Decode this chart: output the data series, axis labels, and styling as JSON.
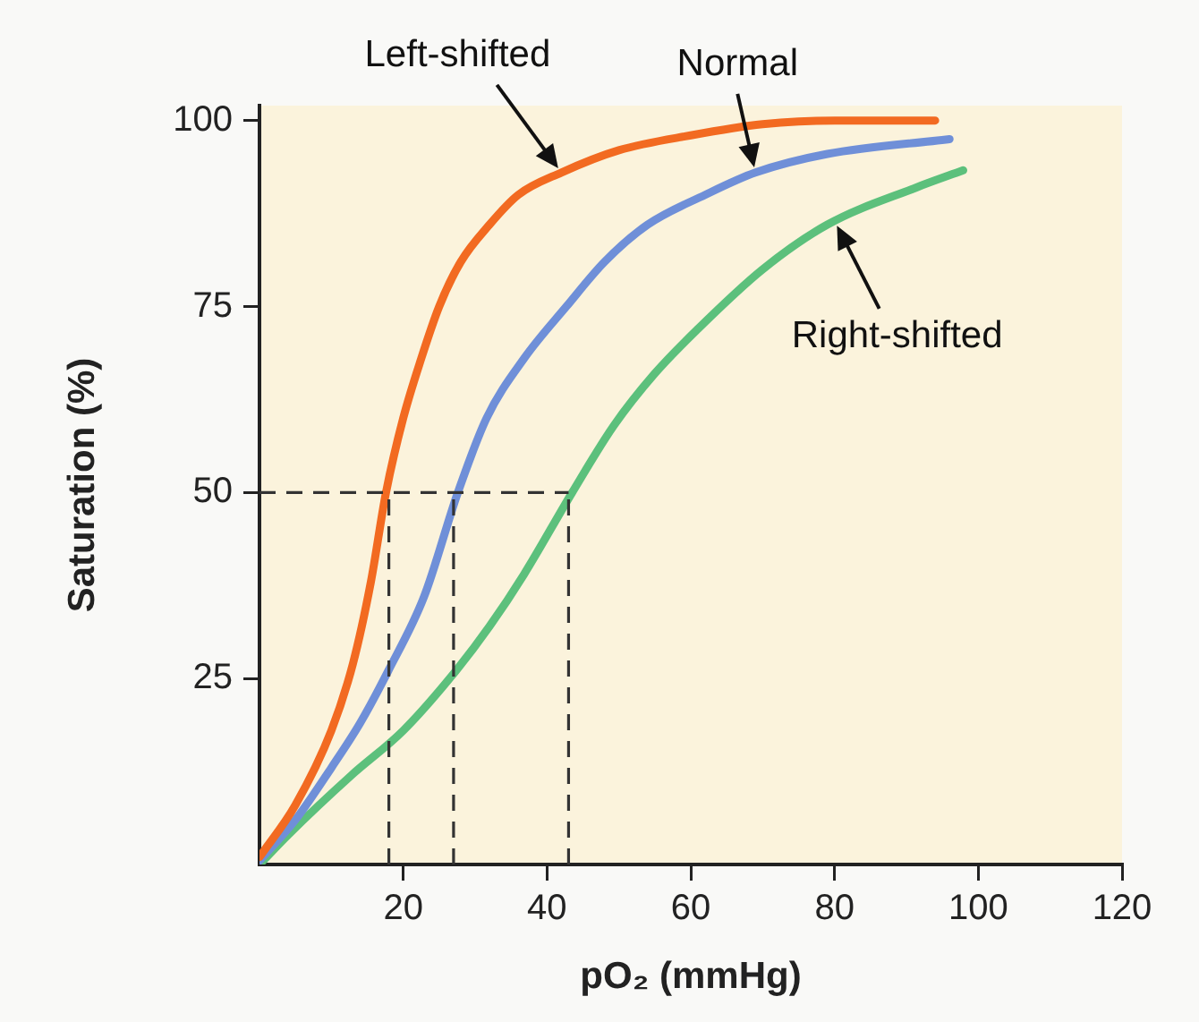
{
  "chart_data": {
    "type": "line",
    "xlabel": "pO₂ (mmHg)",
    "ylabel": "Saturation (%)",
    "xlim": [
      0,
      120
    ],
    "xticks": [
      20,
      40,
      60,
      80,
      100,
      120
    ],
    "ylim": [
      0,
      102
    ],
    "yticks": [
      25,
      50,
      75,
      100
    ],
    "grid": false,
    "legend": false,
    "marker": "none",
    "line_style": "solid",
    "series": [
      {
        "color": "#f26a21",
        "x": [
          0,
          5,
          10,
          13,
          15.5,
          17.6,
          20,
          22.5,
          25,
          28,
          32,
          36,
          42,
          50,
          60,
          70,
          80,
          94
        ],
        "values": [
          1,
          8,
          18,
          27,
          38,
          50,
          60,
          68,
          75,
          81,
          86,
          90,
          93,
          96,
          98,
          99.5,
          100,
          100
        ]
      },
      {
        "color": "#6f8fd8",
        "x": [
          0,
          5,
          10,
          14,
          17.9,
          22.9,
          27.6,
          31.6,
          36.8,
          42.7,
          48,
          54,
          62,
          69,
          79,
          96
        ],
        "values": [
          0.5,
          6,
          13,
          19,
          26,
          36,
          50,
          60,
          68,
          75,
          81,
          86,
          90,
          93,
          95.5,
          97.5
        ]
      },
      {
        "color": "#5cc07c",
        "x": [
          0,
          4,
          12.8,
          20,
          27.3,
          32,
          36.8,
          43.5,
          49.3,
          55,
          61,
          70,
          79,
          91.4,
          97.9
        ],
        "values": [
          0,
          4,
          12,
          18,
          26,
          32,
          39,
          50,
          59,
          66,
          72,
          80,
          86,
          91,
          93.3
        ]
      }
    ],
    "ref_lines": [
      {
        "axis": "y",
        "value": 50,
        "color": "#333333",
        "line_style": "dashed"
      },
      {
        "axis": "x",
        "value": 18,
        "color": "#333333",
        "line_style": "dashed"
      },
      {
        "axis": "x",
        "value": 27,
        "color": "#333333",
        "line_style": "dashed"
      },
      {
        "axis": "x",
        "value": 43,
        "color": "#333333",
        "line_style": "dashed"
      }
    ],
    "annotations": [
      {
        "text": "Left-shifted",
        "x": 42,
        "y": 93
      },
      {
        "text": "Normal",
        "x": 69,
        "y": 93
      },
      {
        "text": "Right-shifted",
        "x": 80,
        "y": 86.5
      }
    ]
  }
}
